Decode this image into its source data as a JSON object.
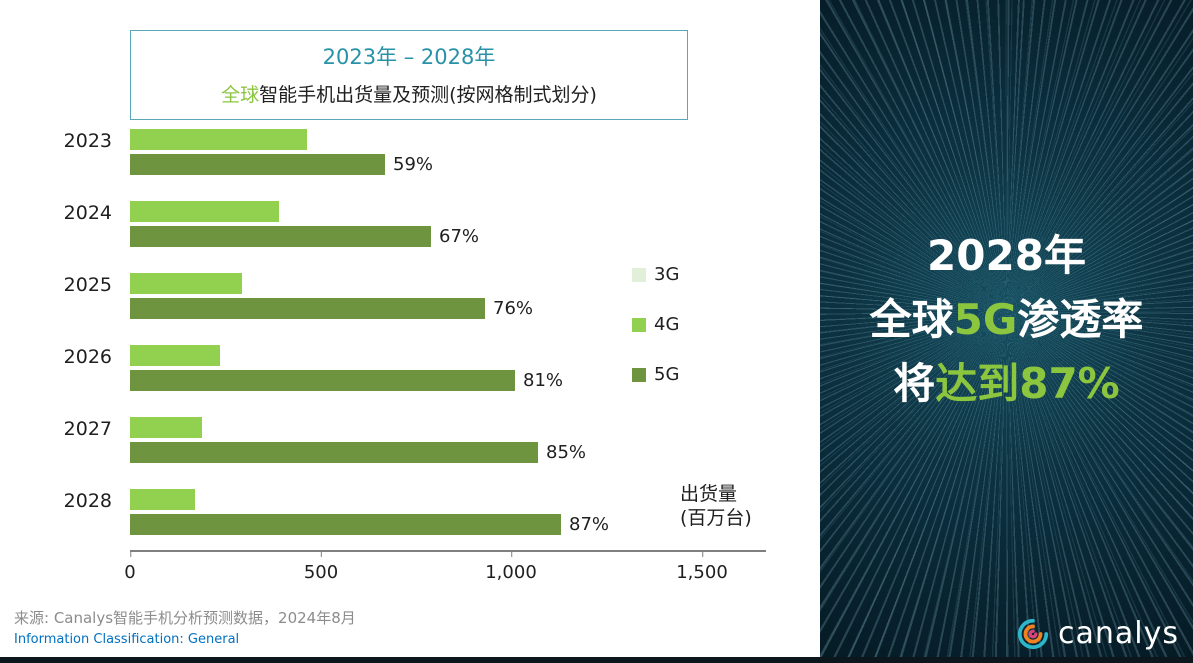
{
  "left_panel": {
    "title": {
      "line1": "2023年 – 2028年",
      "line2_highlight": "全球",
      "line2_rest": "智能手机出货量及预测(按网格制式划分)"
    },
    "unit_label": {
      "line1": "出货量",
      "line2": "(百万台)"
    },
    "source": "来源: Canalys智能手机分析预测数据，2024年8月",
    "classification": "Information Classification: General"
  },
  "chart_data": {
    "type": "bar",
    "orientation": "horizontal",
    "title": "2023年 – 2028年",
    "subtitle": "全球智能手机出货量及预测(按网格制式划分)",
    "xlabel": "出货量(百万台)",
    "categories": [
      "2023",
      "2024",
      "2025",
      "2026",
      "2027",
      "2028"
    ],
    "series": [
      {
        "name": "3G",
        "color": "#e2efd9",
        "values": [
          0,
          0,
          0,
          0,
          0,
          0
        ]
      },
      {
        "name": "4G",
        "color": "#92d050",
        "values": [
          465,
          390,
          295,
          235,
          190,
          170
        ]
      },
      {
        "name": "5G",
        "color": "#6f9440",
        "values": [
          670,
          790,
          930,
          1010,
          1070,
          1130
        ]
      }
    ],
    "labels_5g_share": [
      "59%",
      "67%",
      "76%",
      "81%",
      "85%",
      "87%"
    ],
    "x_ticks": [
      "0",
      "500",
      "1,000",
      "1,500"
    ],
    "x_tick_values": [
      0,
      500,
      1000,
      1500
    ],
    "xlim": [
      0,
      1500
    ],
    "legend": [
      "3G",
      "4G",
      "5G"
    ],
    "legend_position": "right",
    "grid": false
  },
  "right_panel": {
    "line1": "2028年",
    "line2_pre": "全球",
    "line2_highlight": "5G",
    "line2_post": "渗透率",
    "line3_pre": "将",
    "line3_highlight": "达到87%",
    "accent_green": "#8cc63f",
    "logo_text": "canalys"
  }
}
